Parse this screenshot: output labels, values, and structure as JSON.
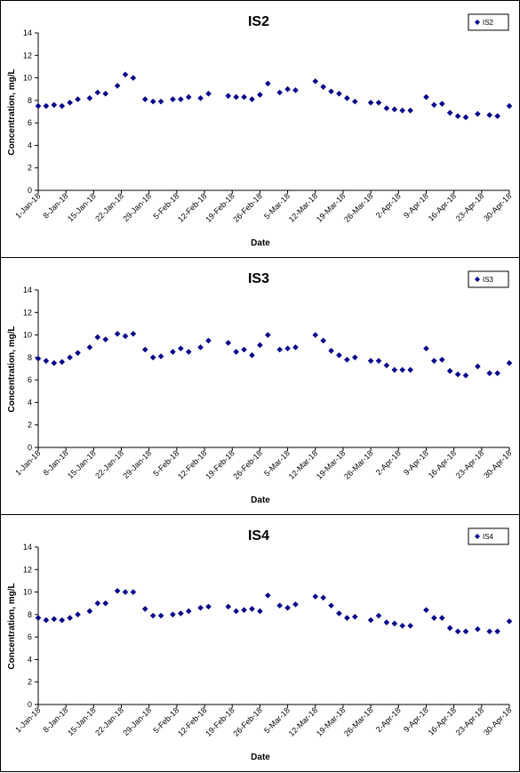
{
  "colors": {
    "marker": "#00008B",
    "axis": "#000000",
    "background": "#ffffff"
  },
  "chart_data": [
    {
      "type": "scatter",
      "title": "IS2",
      "xlabel": "Date",
      "ylabel": "Concentration, mg/L",
      "ylim": [
        0,
        14
      ],
      "yticks": [
        "0",
        "2",
        "4",
        "6",
        "8",
        "10",
        "12",
        "14"
      ],
      "xlim": [
        "2018-01-01",
        "2018-04-30"
      ],
      "xticks": [
        "1-Jan-18",
        "8-Jan-18",
        "15-Jan-18",
        "22-Jan-18",
        "29-Jan-18",
        "5-Feb-18",
        "12-Feb-18",
        "19-Feb-18",
        "26-Feb-18",
        "5-Mar-18",
        "12-Mar-18",
        "19-Mar-18",
        "26-Mar-18",
        "2-Apr-18",
        "9-Apr-18",
        "16-Apr-18",
        "23-Apr-18",
        "30-Apr-18"
      ],
      "grid": false,
      "legend_position": "top-right",
      "series": [
        {
          "name": "IS2",
          "points": [
            [
              "2018-01-01",
              7.5
            ],
            [
              "2018-01-03",
              7.5
            ],
            [
              "2018-01-05",
              7.6
            ],
            [
              "2018-01-07",
              7.5
            ],
            [
              "2018-01-09",
              7.8
            ],
            [
              "2018-01-11",
              8.1
            ],
            [
              "2018-01-14",
              8.2
            ],
            [
              "2018-01-16",
              8.7
            ],
            [
              "2018-01-18",
              8.6
            ],
            [
              "2018-01-21",
              9.3
            ],
            [
              "2018-01-23",
              10.3
            ],
            [
              "2018-01-25",
              10.0
            ],
            [
              "2018-01-28",
              8.1
            ],
            [
              "2018-01-30",
              7.9
            ],
            [
              "2018-02-01",
              7.9
            ],
            [
              "2018-02-04",
              8.1
            ],
            [
              "2018-02-06",
              8.1
            ],
            [
              "2018-02-08",
              8.3
            ],
            [
              "2018-02-11",
              8.2
            ],
            [
              "2018-02-13",
              8.6
            ],
            [
              "2018-02-18",
              8.4
            ],
            [
              "2018-02-20",
              8.3
            ],
            [
              "2018-02-22",
              8.3
            ],
            [
              "2018-02-24",
              8.1
            ],
            [
              "2018-02-26",
              8.5
            ],
            [
              "2018-02-28",
              9.5
            ],
            [
              "2018-03-03",
              8.7
            ],
            [
              "2018-03-05",
              9.0
            ],
            [
              "2018-03-07",
              8.9
            ],
            [
              "2018-03-12",
              9.7
            ],
            [
              "2018-03-14",
              9.2
            ],
            [
              "2018-03-16",
              8.8
            ],
            [
              "2018-03-18",
              8.6
            ],
            [
              "2018-03-20",
              8.2
            ],
            [
              "2018-03-22",
              7.9
            ],
            [
              "2018-03-26",
              7.8
            ],
            [
              "2018-03-28",
              7.8
            ],
            [
              "2018-03-30",
              7.3
            ],
            [
              "2018-04-01",
              7.2
            ],
            [
              "2018-04-03",
              7.1
            ],
            [
              "2018-04-05",
              7.1
            ],
            [
              "2018-04-09",
              8.3
            ],
            [
              "2018-04-11",
              7.6
            ],
            [
              "2018-04-13",
              7.7
            ],
            [
              "2018-04-15",
              6.9
            ],
            [
              "2018-04-17",
              6.6
            ],
            [
              "2018-04-19",
              6.5
            ],
            [
              "2018-04-22",
              6.8
            ],
            [
              "2018-04-25",
              6.7
            ],
            [
              "2018-04-27",
              6.6
            ],
            [
              "2018-04-30",
              7.5
            ]
          ]
        }
      ]
    },
    {
      "type": "scatter",
      "title": "IS3",
      "xlabel": "Date",
      "ylabel": "Concentration, mg/L",
      "ylim": [
        0,
        14
      ],
      "yticks": [
        "0",
        "2",
        "4",
        "6",
        "8",
        "10",
        "12",
        "14"
      ],
      "xlim": [
        "2018-01-01",
        "2018-04-30"
      ],
      "xticks": [
        "1-Jan-18",
        "8-Jan-18",
        "15-Jan-18",
        "22-Jan-18",
        "29-Jan-18",
        "5-Feb-18",
        "12-Feb-18",
        "19-Feb-18",
        "26-Feb-18",
        "5-Mar-18",
        "12-Mar-18",
        "19-Mar-18",
        "26-Mar-18",
        "2-Apr-18",
        "9-Apr-18",
        "16-Apr-18",
        "23-Apr-18",
        "30-Apr-18"
      ],
      "grid": false,
      "legend_position": "top-right",
      "series": [
        {
          "name": "IS3",
          "points": [
            [
              "2018-01-01",
              7.9
            ],
            [
              "2018-01-03",
              7.7
            ],
            [
              "2018-01-05",
              7.5
            ],
            [
              "2018-01-07",
              7.6
            ],
            [
              "2018-01-09",
              8.0
            ],
            [
              "2018-01-11",
              8.4
            ],
            [
              "2018-01-14",
              8.9
            ],
            [
              "2018-01-16",
              9.8
            ],
            [
              "2018-01-18",
              9.6
            ],
            [
              "2018-01-21",
              10.1
            ],
            [
              "2018-01-23",
              9.9
            ],
            [
              "2018-01-25",
              10.1
            ],
            [
              "2018-01-28",
              8.7
            ],
            [
              "2018-01-30",
              8.0
            ],
            [
              "2018-02-01",
              8.1
            ],
            [
              "2018-02-04",
              8.5
            ],
            [
              "2018-02-06",
              8.8
            ],
            [
              "2018-02-08",
              8.5
            ],
            [
              "2018-02-11",
              8.9
            ],
            [
              "2018-02-13",
              9.5
            ],
            [
              "2018-02-18",
              9.3
            ],
            [
              "2018-02-20",
              8.5
            ],
            [
              "2018-02-22",
              8.7
            ],
            [
              "2018-02-24",
              8.2
            ],
            [
              "2018-02-26",
              9.1
            ],
            [
              "2018-02-28",
              10.0
            ],
            [
              "2018-03-03",
              8.7
            ],
            [
              "2018-03-05",
              8.8
            ],
            [
              "2018-03-07",
              8.9
            ],
            [
              "2018-03-12",
              10.0
            ],
            [
              "2018-03-14",
              9.5
            ],
            [
              "2018-03-16",
              8.6
            ],
            [
              "2018-03-18",
              8.2
            ],
            [
              "2018-03-20",
              7.8
            ],
            [
              "2018-03-22",
              8.0
            ],
            [
              "2018-03-26",
              7.7
            ],
            [
              "2018-03-28",
              7.7
            ],
            [
              "2018-03-30",
              7.3
            ],
            [
              "2018-04-01",
              6.9
            ],
            [
              "2018-04-03",
              6.9
            ],
            [
              "2018-04-05",
              6.9
            ],
            [
              "2018-04-09",
              8.8
            ],
            [
              "2018-04-11",
              7.7
            ],
            [
              "2018-04-13",
              7.8
            ],
            [
              "2018-04-15",
              6.8
            ],
            [
              "2018-04-17",
              6.5
            ],
            [
              "2018-04-19",
              6.4
            ],
            [
              "2018-04-22",
              7.2
            ],
            [
              "2018-04-25",
              6.6
            ],
            [
              "2018-04-27",
              6.6
            ],
            [
              "2018-04-30",
              7.5
            ]
          ]
        }
      ]
    },
    {
      "type": "scatter",
      "title": "IS4",
      "xlabel": "Date",
      "ylabel": "Concentration, mg/L",
      "ylim": [
        0,
        14
      ],
      "yticks": [
        "0",
        "2",
        "4",
        "6",
        "8",
        "10",
        "12",
        "14"
      ],
      "xlim": [
        "2018-01-01",
        "2018-04-30"
      ],
      "xticks": [
        "1-Jan-18",
        "8-Jan-18",
        "15-Jan-18",
        "22-Jan-18",
        "29-Jan-18",
        "5-Feb-18",
        "12-Feb-18",
        "19-Feb-18",
        "26-Feb-18",
        "5-Mar-18",
        "12-Mar-18",
        "19-Mar-18",
        "26-Mar-18",
        "2-Apr-18",
        "9-Apr-18",
        "16-Apr-18",
        "23-Apr-18",
        "30-Apr-18"
      ],
      "grid": false,
      "legend_position": "top-right",
      "series": [
        {
          "name": "IS4",
          "points": [
            [
              "2018-01-01",
              7.7
            ],
            [
              "2018-01-03",
              7.5
            ],
            [
              "2018-01-05",
              7.6
            ],
            [
              "2018-01-07",
              7.5
            ],
            [
              "2018-01-09",
              7.7
            ],
            [
              "2018-01-11",
              8.0
            ],
            [
              "2018-01-14",
              8.3
            ],
            [
              "2018-01-16",
              9.0
            ],
            [
              "2018-01-18",
              9.0
            ],
            [
              "2018-01-21",
              10.1
            ],
            [
              "2018-01-23",
              10.0
            ],
            [
              "2018-01-25",
              10.0
            ],
            [
              "2018-01-28",
              8.5
            ],
            [
              "2018-01-30",
              7.9
            ],
            [
              "2018-02-01",
              7.9
            ],
            [
              "2018-02-04",
              8.0
            ],
            [
              "2018-02-06",
              8.1
            ],
            [
              "2018-02-08",
              8.3
            ],
            [
              "2018-02-11",
              8.6
            ],
            [
              "2018-02-13",
              8.7
            ],
            [
              "2018-02-18",
              8.7
            ],
            [
              "2018-02-20",
              8.3
            ],
            [
              "2018-02-22",
              8.4
            ],
            [
              "2018-02-24",
              8.5
            ],
            [
              "2018-02-26",
              8.3
            ],
            [
              "2018-02-28",
              9.7
            ],
            [
              "2018-03-03",
              8.8
            ],
            [
              "2018-03-05",
              8.6
            ],
            [
              "2018-03-07",
              8.9
            ],
            [
              "2018-03-12",
              9.6
            ],
            [
              "2018-03-14",
              9.5
            ],
            [
              "2018-03-16",
              8.8
            ],
            [
              "2018-03-18",
              8.1
            ],
            [
              "2018-03-20",
              7.7
            ],
            [
              "2018-03-22",
              7.8
            ],
            [
              "2018-03-26",
              7.5
            ],
            [
              "2018-03-28",
              7.9
            ],
            [
              "2018-03-30",
              7.3
            ],
            [
              "2018-04-01",
              7.2
            ],
            [
              "2018-04-03",
              7.0
            ],
            [
              "2018-04-05",
              7.0
            ],
            [
              "2018-04-09",
              8.4
            ],
            [
              "2018-04-11",
              7.7
            ],
            [
              "2018-04-13",
              7.7
            ],
            [
              "2018-04-15",
              6.8
            ],
            [
              "2018-04-17",
              6.5
            ],
            [
              "2018-04-19",
              6.5
            ],
            [
              "2018-04-22",
              6.7
            ],
            [
              "2018-04-25",
              6.5
            ],
            [
              "2018-04-27",
              6.5
            ],
            [
              "2018-04-30",
              7.4
            ]
          ]
        }
      ]
    }
  ]
}
